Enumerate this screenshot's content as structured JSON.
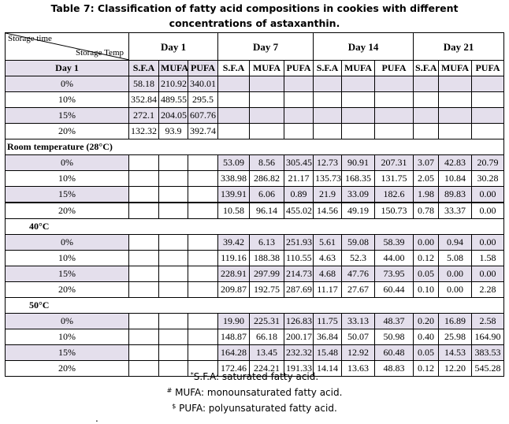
{
  "title": {
    "line1": "Table 7: Classification of fatty acid compositions in cookies with different",
    "line2": "concentrations of astaxanthin."
  },
  "header": {
    "corner_top": "Storage time",
    "corner_bottom": "Storage Temp",
    "days": [
      "Day 1",
      "Day 7",
      "Day 14",
      "Day 21"
    ],
    "subheaders": [
      "S.F.A",
      "MUFA",
      "PUFA"
    ]
  },
  "groups": [
    {
      "label": "Day 1",
      "rows": [
        {
          "conc": "0%",
          "values": [
            "58.18",
            "210.92",
            "340.01",
            "",
            "",
            "",
            "",
            "",
            "",
            "",
            "",
            ""
          ]
        },
        {
          "conc": "10%",
          "values": [
            "352.84",
            "489.55",
            "295.5",
            "",
            "",
            "",
            "",
            "",
            "",
            "",
            "",
            ""
          ]
        },
        {
          "conc": "15%",
          "values": [
            "272.1",
            "204.05",
            "607.76",
            "",
            "",
            "",
            "",
            "",
            "",
            "",
            "",
            ""
          ]
        },
        {
          "conc": "20%",
          "values": [
            "132.32",
            "93.9",
            "392.74",
            "",
            "",
            "",
            "",
            "",
            "",
            "",
            "",
            ""
          ]
        }
      ]
    },
    {
      "label": "Room temperature (28°C)",
      "rows": [
        {
          "conc": "0%",
          "values": [
            "",
            "",
            "",
            "53.09",
            "8.56",
            "305.45",
            "12.73",
            "90.91",
            "207.31",
            "3.07",
            "42.83",
            "20.79"
          ]
        },
        {
          "conc": "10%",
          "values": [
            "",
            "",
            "",
            "338.98",
            "286.82",
            "21.17",
            "135.73",
            "168.35",
            "131.75",
            "2.05",
            "10.84",
            "30.28"
          ]
        },
        {
          "conc": "15%",
          "values": [
            "",
            "",
            "",
            "139.91",
            "6.06",
            "0.89",
            "21.9",
            "33.09",
            "182.6",
            "1.98",
            "89.83",
            "0.00"
          ]
        },
        {
          "conc": "20%",
          "values": [
            "",
            "",
            "",
            "10.58",
            "96.14",
            "455.02",
            "14.56",
            "49.19",
            "150.73",
            "0.78",
            "33.37",
            "0.00"
          ]
        }
      ]
    },
    {
      "label": "40°C",
      "rows": [
        {
          "conc": "0%",
          "values": [
            "",
            "",
            "",
            "39.42",
            "6.13",
            "251.93",
            "5.61",
            "59.08",
            "58.39",
            "0.00",
            "0.94",
            "0.00"
          ]
        },
        {
          "conc": "10%",
          "values": [
            "",
            "",
            "",
            "119.16",
            "188.38",
            "110.55",
            "4.63",
            "52.3",
            "44.00",
            "0.12",
            "5.08",
            "1.58"
          ]
        },
        {
          "conc": "15%",
          "values": [
            "",
            "",
            "",
            "228.91",
            "297.99",
            "214.73",
            "4.68",
            "47.76",
            "73.95",
            "0.05",
            "0.00",
            "0.00"
          ]
        },
        {
          "conc": "20%",
          "values": [
            "",
            "",
            "",
            "209.87",
            "192.75",
            "287.69",
            "11.17",
            "27.67",
            "60.44",
            "0.10",
            "0.00",
            "2.28"
          ]
        }
      ]
    },
    {
      "label": "50°C",
      "rows": [
        {
          "conc": "0%",
          "values": [
            "",
            "",
            "",
            "19.90",
            "225.31",
            "126.83",
            "11.75",
            "33.13",
            "48.37",
            "0.20",
            "16.89",
            "2.58"
          ]
        },
        {
          "conc": "10%",
          "values": [
            "",
            "",
            "",
            "148.87",
            "66.18",
            "200.17",
            "36.84",
            "50.07",
            "50.98",
            "0.40",
            "25.98",
            "164.90"
          ]
        },
        {
          "conc": "15%",
          "values": [
            "",
            "",
            "",
            "164.28",
            "13.45",
            "232.32",
            "15.48",
            "12.92",
            "60.48",
            "0.05",
            "14.53",
            "383.53"
          ]
        },
        {
          "conc": "20%",
          "values": [
            "",
            "",
            "",
            "172.46",
            "224.21",
            "191.33",
            "14.14",
            "13.63",
            "48.83",
            "0.12",
            "12.20",
            "545.28"
          ]
        }
      ]
    }
  ],
  "footnotes": [
    {
      "mark": "*",
      "text": "S.F.A: saturated fatty acid."
    },
    {
      "mark": "#",
      "text": " MUFA: monounsaturated fatty acid."
    },
    {
      "mark": "$",
      "text": " PUFA: polyunsaturated fatty acid."
    }
  ],
  "trailing_mark": ".",
  "colors": {
    "shade": "#e4dfec",
    "border": "#000000"
  }
}
